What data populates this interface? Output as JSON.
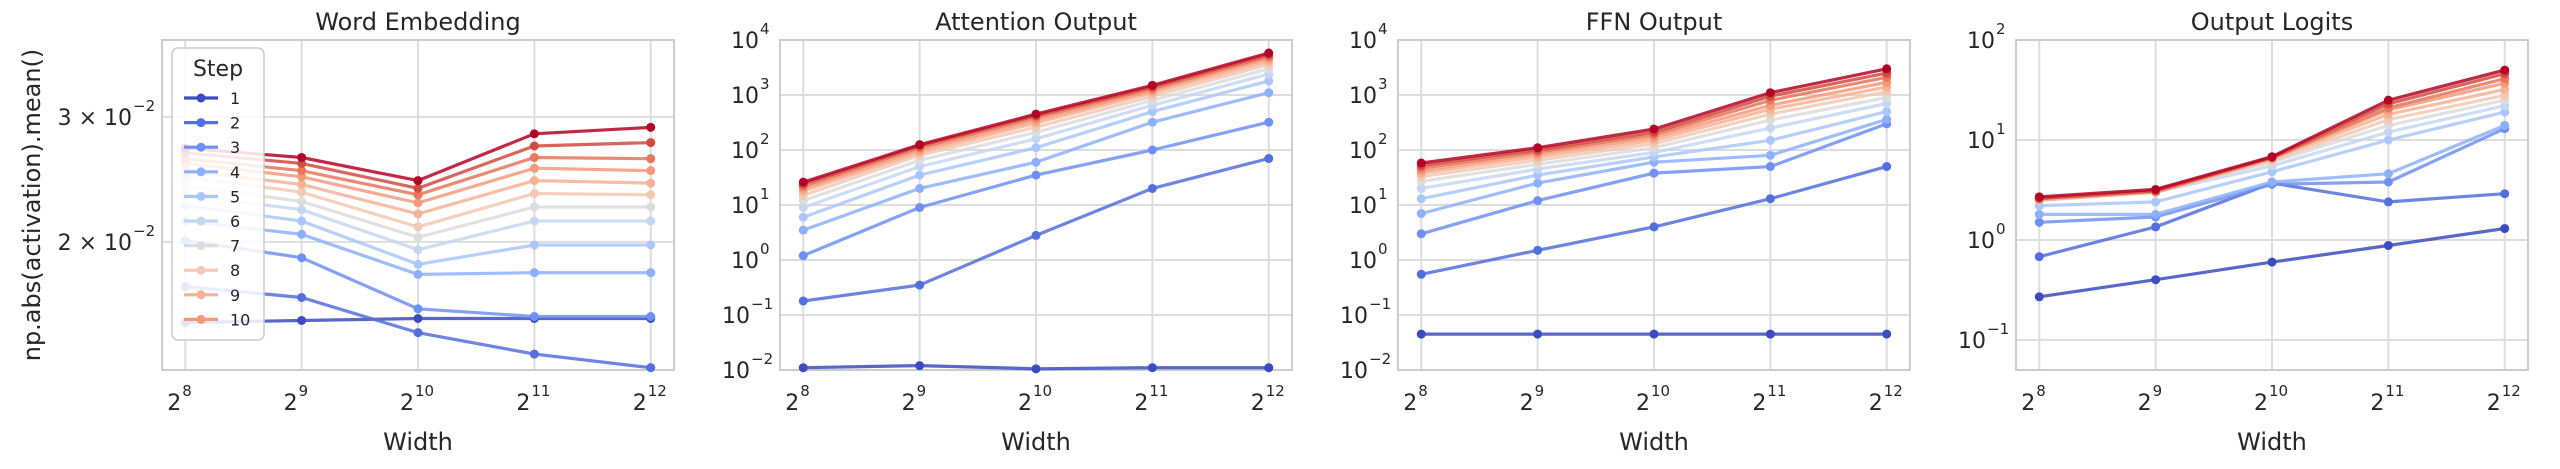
{
  "figure": {
    "ylabel": "np.abs(activation).mean()"
  },
  "legend": {
    "title": "Step",
    "items": [
      "1",
      "2",
      "3",
      "4",
      "5",
      "6",
      "7",
      "8",
      "9",
      "10"
    ],
    "placement": "upper-left (first panel)"
  },
  "colors": {
    "steps": [
      "#3b4cc0",
      "#536edd",
      "#6e90f2",
      "#8db0fe",
      "#aac7fd",
      "#c5d6f2",
      "#dddcdc",
      "#f2c9b4",
      "#f7b194",
      "#f49a7b",
      "#e8765c",
      "#d24b40",
      "#b40426"
    ],
    "grid": "#dddddd",
    "frame": "#cccccc",
    "text": "#262626"
  },
  "chart_data": [
    {
      "type": "line",
      "title": "Word Embedding",
      "xlabel": "Width",
      "ylabel": "np.abs(activation).mean()",
      "x": [
        8,
        9,
        10,
        11,
        12
      ],
      "x_tick_base": "2",
      "x_tick_exponents": [
        "8",
        "9",
        "10",
        "11",
        "12"
      ],
      "yscale": "log",
      "ylim": [
        0.0132,
        0.0385
      ],
      "ytick_labels": [
        {
          "value": 0.02,
          "mantissa": "2 × 10",
          "exp": "−2"
        },
        {
          "value": 0.03,
          "mantissa": "3 × 10",
          "exp": "−2"
        }
      ],
      "grid": true,
      "series": [
        {
          "name": "1",
          "values": [
            0.0154,
            0.0155,
            0.0156,
            0.0156,
            0.0156
          ]
        },
        {
          "name": "2",
          "values": [
            0.0173,
            0.0167,
            0.0149,
            0.0139,
            0.0133
          ]
        },
        {
          "name": "3",
          "values": [
            0.0201,
            0.019,
            0.0161,
            0.0157,
            0.0157
          ]
        },
        {
          "name": "4",
          "values": [
            0.0214,
            0.0205,
            0.018,
            0.0181,
            0.0181
          ]
        },
        {
          "name": "5",
          "values": [
            0.0225,
            0.0214,
            0.0186,
            0.0198,
            0.0198
          ]
        },
        {
          "name": "6",
          "values": [
            0.0233,
            0.0222,
            0.0195,
            0.0214,
            0.0214
          ]
        },
        {
          "name": "7",
          "values": [
            0.024,
            0.0228,
            0.0203,
            0.0224,
            0.0224
          ]
        },
        {
          "name": "8",
          "values": [
            0.0247,
            0.0235,
            0.021,
            0.0234,
            0.0233
          ]
        },
        {
          "name": "9",
          "values": [
            0.0252,
            0.0241,
            0.0219,
            0.0244,
            0.0242
          ]
        },
        {
          "name": "10",
          "values": [
            0.0258,
            0.0247,
            0.0227,
            0.0254,
            0.0252
          ]
        },
        {
          "name": "",
          "values": [
            0.0262,
            0.0252,
            0.0233,
            0.0263,
            0.0262
          ]
        },
        {
          "name": "",
          "values": [
            0.0267,
            0.0258,
            0.0238,
            0.0273,
            0.0276
          ]
        },
        {
          "name": "",
          "values": [
            0.0271,
            0.0263,
            0.0244,
            0.0284,
            0.029
          ]
        }
      ]
    },
    {
      "type": "line",
      "title": "Attention Output",
      "xlabel": "Width",
      "x": [
        8,
        9,
        10,
        11,
        12
      ],
      "x_tick_base": "2",
      "x_tick_exponents": [
        "8",
        "9",
        "10",
        "11",
        "12"
      ],
      "yscale": "log",
      "ylim": [
        0.01,
        10000
      ],
      "ytick_labels": [
        {
          "value": 0.01,
          "mantissa": "10",
          "exp": "−2"
        },
        {
          "value": 0.1,
          "mantissa": "10",
          "exp": "−1"
        },
        {
          "value": 1,
          "mantissa": "10",
          "exp": "0"
        },
        {
          "value": 10,
          "mantissa": "10",
          "exp": "1"
        },
        {
          "value": 100,
          "mantissa": "10",
          "exp": "2"
        },
        {
          "value": 1000,
          "mantissa": "10",
          "exp": "3"
        },
        {
          "value": 10000,
          "mantissa": "10",
          "exp": "4"
        }
      ],
      "grid": true,
      "series": [
        {
          "name": "1",
          "values": [
            0.011,
            0.012,
            0.0105,
            0.011,
            0.011
          ]
        },
        {
          "name": "2",
          "values": [
            0.18,
            0.35,
            2.8,
            20,
            70
          ]
        },
        {
          "name": "3",
          "values": [
            1.2,
            9,
            35,
            100,
            320
          ]
        },
        {
          "name": "4",
          "values": [
            3.5,
            20,
            60,
            320,
            1100
          ]
        },
        {
          "name": "5",
          "values": [
            6,
            35,
            110,
            500,
            1800
          ]
        },
        {
          "name": "6",
          "values": [
            9,
            50,
            160,
            650,
            2400
          ]
        },
        {
          "name": "7",
          "values": [
            12,
            65,
            210,
            800,
            3000
          ]
        },
        {
          "name": "8",
          "values": [
            15,
            80,
            260,
            950,
            3600
          ]
        },
        {
          "name": "9",
          "values": [
            18,
            90,
            310,
            1100,
            4100
          ]
        },
        {
          "name": "10",
          "values": [
            20,
            100,
            350,
            1200,
            4600
          ]
        },
        {
          "name": "",
          "values": [
            22,
            110,
            390,
            1300,
            5000
          ]
        },
        {
          "name": "",
          "values": [
            24,
            118,
            420,
            1400,
            5400
          ]
        },
        {
          "name": "",
          "values": [
            26,
            125,
            450,
            1500,
            5800
          ]
        }
      ]
    },
    {
      "type": "line",
      "title": "FFN Output",
      "xlabel": "Width",
      "x": [
        8,
        9,
        10,
        11,
        12
      ],
      "x_tick_base": "2",
      "x_tick_exponents": [
        "8",
        "9",
        "10",
        "11",
        "12"
      ],
      "yscale": "log",
      "ylim": [
        0.01,
        10000
      ],
      "ytick_labels": [
        {
          "value": 0.01,
          "mantissa": "10",
          "exp": "−2"
        },
        {
          "value": 0.1,
          "mantissa": "10",
          "exp": "−1"
        },
        {
          "value": 1,
          "mantissa": "10",
          "exp": "0"
        },
        {
          "value": 10,
          "mantissa": "10",
          "exp": "1"
        },
        {
          "value": 100,
          "mantissa": "10",
          "exp": "2"
        },
        {
          "value": 1000,
          "mantissa": "10",
          "exp": "3"
        },
        {
          "value": 10000,
          "mantissa": "10",
          "exp": "4"
        }
      ],
      "grid": true,
      "series": [
        {
          "name": "1",
          "values": [
            0.045,
            0.045,
            0.045,
            0.045,
            0.045
          ]
        },
        {
          "name": "2",
          "values": [
            0.55,
            1.5,
            4,
            13,
            50
          ]
        },
        {
          "name": "3",
          "values": [
            3,
            12,
            38,
            50,
            300
          ]
        },
        {
          "name": "4",
          "values": [
            7,
            25,
            60,
            80,
            360
          ]
        },
        {
          "name": "5",
          "values": [
            13,
            35,
            75,
            150,
            500
          ]
        },
        {
          "name": "6",
          "values": [
            20,
            45,
            90,
            250,
            700
          ]
        },
        {
          "name": "7",
          "values": [
            27,
            55,
            110,
            350,
            900
          ]
        },
        {
          "name": "8",
          "values": [
            33,
            65,
            130,
            450,
            1150
          ]
        },
        {
          "name": "9",
          "values": [
            38,
            75,
            150,
            550,
            1400
          ]
        },
        {
          "name": "10",
          "values": [
            42,
            85,
            170,
            650,
            1700
          ]
        },
        {
          "name": "",
          "values": [
            47,
            92,
            190,
            800,
            2100
          ]
        },
        {
          "name": "",
          "values": [
            52,
            100,
            210,
            950,
            2500
          ]
        },
        {
          "name": "",
          "values": [
            58,
            110,
            240,
            1100,
            3000
          ]
        }
      ]
    },
    {
      "type": "line",
      "title": "Output Logits",
      "xlabel": "Width",
      "x": [
        8,
        9,
        10,
        11,
        12
      ],
      "x_tick_base": "2",
      "x_tick_exponents": [
        "8",
        "9",
        "10",
        "11",
        "12"
      ],
      "yscale": "log",
      "ylim": [
        0.05,
        100
      ],
      "ytick_labels": [
        {
          "value": 0.1,
          "mantissa": "10",
          "exp": "−1"
        },
        {
          "value": 1,
          "mantissa": "10",
          "exp": "0"
        },
        {
          "value": 10,
          "mantissa": "10",
          "exp": "1"
        },
        {
          "value": 100,
          "mantissa": "10",
          "exp": "2"
        }
      ],
      "grid": true,
      "series": [
        {
          "name": "1",
          "values": [
            0.27,
            0.4,
            0.6,
            0.88,
            1.3
          ]
        },
        {
          "name": "2",
          "values": [
            0.68,
            1.35,
            3.7,
            2.4,
            2.9
          ]
        },
        {
          "name": "3",
          "values": [
            1.5,
            1.7,
            3.6,
            3.8,
            13
          ]
        },
        {
          "name": "4",
          "values": [
            1.8,
            1.8,
            3.8,
            4.6,
            14
          ]
        },
        {
          "name": "5",
          "values": [
            2.2,
            2.4,
            4.8,
            10,
            19
          ]
        },
        {
          "name": "6",
          "values": [
            2.5,
            3.0,
            5.5,
            12,
            22
          ]
        },
        {
          "name": "7",
          "values": [
            2.6,
            3.2,
            6.0,
            14,
            25
          ]
        },
        {
          "name": "8",
          "values": [
            2.5,
            3.0,
            6.2,
            16,
            28
          ]
        },
        {
          "name": "9",
          "values": [
            2.5,
            3.0,
            6.5,
            18,
            32
          ]
        },
        {
          "name": "10",
          "values": [
            2.6,
            3.0,
            6.6,
            20,
            37
          ]
        },
        {
          "name": "",
          "values": [
            2.6,
            3.1,
            6.6,
            21,
            41
          ]
        },
        {
          "name": "",
          "values": [
            2.6,
            3.1,
            6.7,
            23,
            46
          ]
        },
        {
          "name": "",
          "values": [
            2.7,
            3.2,
            6.8,
            25,
            50
          ]
        }
      ]
    }
  ]
}
